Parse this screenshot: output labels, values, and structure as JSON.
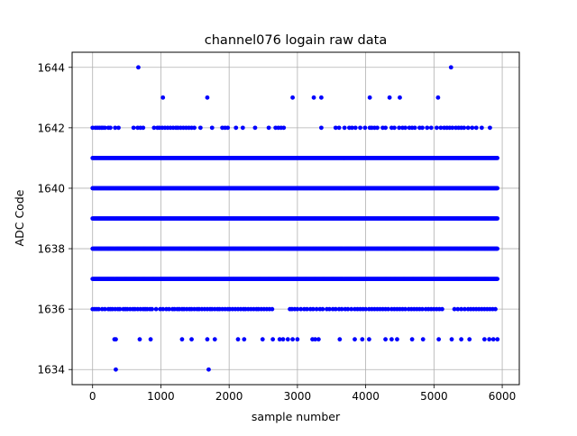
{
  "chart_data": {
    "type": "scatter",
    "title": "channel076 logain raw data",
    "xlabel": "sample number",
    "ylabel": "ADC Code",
    "xlim": [
      -300,
      6250
    ],
    "ylim": [
      1633.5,
      1644.5
    ],
    "xticks": [
      0,
      1000,
      2000,
      3000,
      4000,
      5000,
      6000
    ],
    "yticks": [
      1634,
      1636,
      1638,
      1640,
      1642,
      1644
    ],
    "grid": true,
    "marker_color": "#0000ff",
    "x_max_sample": 5930,
    "series": [
      {
        "label_note": "dense rows: ADC codes recorded at nearly every sample from 0 to about 5930",
        "dense_levels": [
          1637,
          1638,
          1639,
          1640,
          1641
        ],
        "sparse_levels": {
          "1636": [
            0,
            30,
            60,
            90,
            140,
            180,
            230,
            260,
            290,
            330,
            370,
            400,
            450,
            480,
            510,
            550,
            590,
            620,
            660,
            700,
            740,
            770,
            800,
            840,
            870,
            930,
            990,
            1030,
            1080,
            1120,
            1170,
            1200,
            1240,
            1270,
            1310,
            1340,
            1380,
            1420,
            1450,
            1490,
            1530,
            1560,
            1600,
            1640,
            1680,
            1720,
            1750,
            1790,
            1830,
            1860,
            1900,
            1940,
            1980,
            2010,
            2050,
            2090,
            2130,
            2170,
            2210,
            2240,
            2280,
            2320,
            2360,
            2400,
            2430,
            2470,
            2510,
            2550,
            2590,
            2630,
            2890,
            2920,
            2960,
            3000,
            3050,
            3100,
            3140,
            3190,
            3230,
            3280,
            3330,
            3370,
            3430,
            3470,
            3520,
            3560,
            3610,
            3650,
            3700,
            3740,
            3790,
            3840,
            3880,
            3920,
            3960,
            4000,
            4050,
            4090,
            4130,
            4170,
            4210,
            4250,
            4290,
            4330,
            4380,
            4420,
            4460,
            4500,
            4540,
            4580,
            4630,
            4670,
            4710,
            4750,
            4790,
            4830,
            4880,
            4920,
            4960,
            5000,
            5040,
            5080,
            5120,
            5300,
            5350,
            5400,
            5450,
            5500,
            5540,
            5580,
            5620,
            5660,
            5700,
            5740,
            5780,
            5820,
            5860,
            5900
          ],
          "1635": [
            320,
            340,
            690,
            850,
            1310,
            1450,
            1680,
            1790,
            2130,
            2220,
            2490,
            2640,
            2740,
            2790,
            2860,
            2930,
            3000,
            3220,
            3260,
            3310,
            3620,
            3840,
            3950,
            4050,
            4290,
            4380,
            4460,
            4680,
            4840,
            5070,
            5260,
            5400,
            5520,
            5740,
            5810,
            5870,
            5930
          ],
          "1634": [
            340,
            1700
          ],
          "1642": [
            0,
            40,
            70,
            100,
            130,
            150,
            180,
            230,
            260,
            330,
            380,
            600,
            660,
            700,
            740,
            900,
            950,
            980,
            1020,
            1060,
            1100,
            1140,
            1180,
            1220,
            1250,
            1290,
            1330,
            1370,
            1410,
            1450,
            1490,
            1580,
            1750,
            1900,
            1940,
            1980,
            2100,
            2200,
            2380,
            2580,
            2680,
            2720,
            2760,
            2800,
            3350,
            3560,
            3610,
            3690,
            3760,
            3800,
            3850,
            3920,
            3990,
            4060,
            4090,
            4130,
            4170,
            4250,
            4290,
            4380,
            4420,
            4490,
            4540,
            4580,
            4640,
            4680,
            4720,
            4790,
            4830,
            4900,
            4960,
            5040,
            5100,
            5150,
            5190,
            5230,
            5270,
            5320,
            5360,
            5400,
            5440,
            5500,
            5560,
            5620,
            5700,
            5820
          ],
          "1643": [
            1030,
            1680,
            2930,
            3240,
            3350,
            4060,
            4350,
            4500,
            5060
          ],
          "1644": [
            670,
            5250
          ]
        }
      }
    ]
  }
}
